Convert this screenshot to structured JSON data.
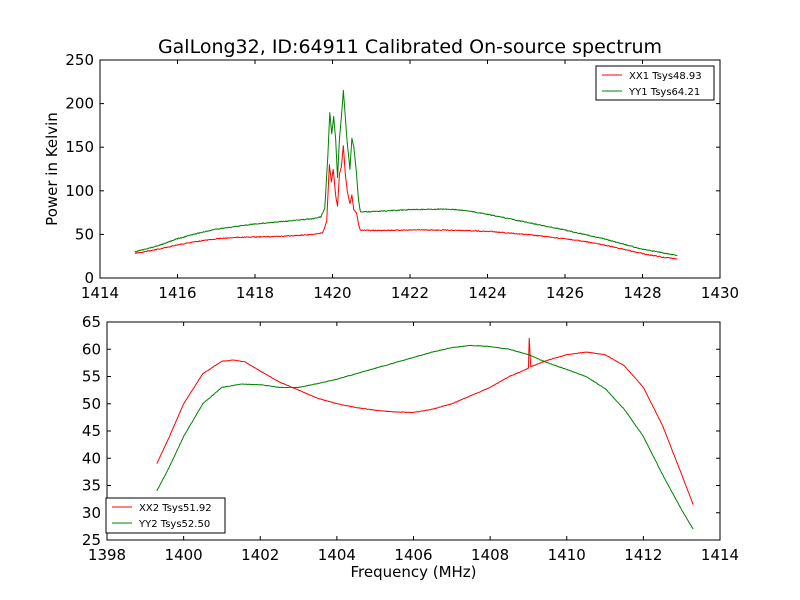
{
  "title": "GalLong32, ID:64911 Calibrated On-source spectrum",
  "chart_data": [
    {
      "type": "line",
      "title": "GalLong32, ID:64911 Calibrated On-source spectrum",
      "xlabel": "",
      "ylabel": "Power in Kelvin",
      "xlim": [
        1414,
        1430
      ],
      "ylim": [
        0,
        250
      ],
      "xticks": [
        "1414",
        "1416",
        "1418",
        "1420",
        "1422",
        "1424",
        "1426",
        "1428",
        "1430"
      ],
      "yticks": [
        "0",
        "50",
        "100",
        "150",
        "200",
        "250"
      ],
      "legend_position": "top-right",
      "grid": false,
      "series": [
        {
          "name": "XX1 Tsys48.93",
          "color": "#ff0000",
          "points": [
            [
              1414.9,
              28
            ],
            [
              1415.5,
              33
            ],
            [
              1416,
              38
            ],
            [
              1416.5,
              42
            ],
            [
              1417,
              45
            ],
            [
              1417.5,
              46.5
            ],
            [
              1418,
              47
            ],
            [
              1418.5,
              47.5
            ],
            [
              1419,
              48.5
            ],
            [
              1419.5,
              50
            ],
            [
              1419.75,
              52
            ],
            [
              1419.85,
              65
            ],
            [
              1419.92,
              130
            ],
            [
              1419.97,
              110
            ],
            [
              1420.02,
              125
            ],
            [
              1420.08,
              95
            ],
            [
              1420.13,
              82
            ],
            [
              1420.18,
              120
            ],
            [
              1420.23,
              128
            ],
            [
              1420.28,
              152
            ],
            [
              1420.33,
              120
            ],
            [
              1420.38,
              100
            ],
            [
              1420.45,
              85
            ],
            [
              1420.5,
              95
            ],
            [
              1420.55,
              78
            ],
            [
              1420.62,
              75
            ],
            [
              1420.68,
              60
            ],
            [
              1420.72,
              55
            ],
            [
              1421,
              54.5
            ],
            [
              1422,
              55
            ],
            [
              1423,
              55
            ],
            [
              1424,
              53.5
            ],
            [
              1425,
              50
            ],
            [
              1426,
              45
            ],
            [
              1426.5,
              42
            ],
            [
              1427,
              38
            ],
            [
              1427.5,
              33
            ],
            [
              1428,
              28
            ],
            [
              1428.5,
              24
            ],
            [
              1428.9,
              22
            ]
          ]
        },
        {
          "name": "YY1 Tsys64.21",
          "color": "#008000",
          "points": [
            [
              1414.9,
              30
            ],
            [
              1415.5,
              37
            ],
            [
              1416,
              45
            ],
            [
              1416.5,
              51
            ],
            [
              1417,
              56
            ],
            [
              1417.5,
              59
            ],
            [
              1418,
              62
            ],
            [
              1418.5,
              64
            ],
            [
              1419,
              66
            ],
            [
              1419.5,
              68
            ],
            [
              1419.7,
              70
            ],
            [
              1419.8,
              80
            ],
            [
              1419.88,
              140
            ],
            [
              1419.93,
              190
            ],
            [
              1419.98,
              165
            ],
            [
              1420.03,
              185
            ],
            [
              1420.08,
              160
            ],
            [
              1420.13,
              115
            ],
            [
              1420.18,
              160
            ],
            [
              1420.23,
              185
            ],
            [
              1420.28,
              215
            ],
            [
              1420.33,
              185
            ],
            [
              1420.38,
              155
            ],
            [
              1420.45,
              125
            ],
            [
              1420.5,
              160
            ],
            [
              1420.55,
              150
            ],
            [
              1420.62,
              120
            ],
            [
              1420.67,
              90
            ],
            [
              1420.72,
              76
            ],
            [
              1421,
              76
            ],
            [
              1422,
              78.5
            ],
            [
              1423,
              79
            ],
            [
              1423.5,
              77
            ],
            [
              1424,
              73
            ],
            [
              1425,
              64
            ],
            [
              1426,
              55
            ],
            [
              1426.5,
              50
            ],
            [
              1427,
              45
            ],
            [
              1427.5,
              39
            ],
            [
              1428,
              33
            ],
            [
              1428.5,
              29
            ],
            [
              1428.9,
              26
            ]
          ]
        }
      ]
    },
    {
      "type": "line",
      "title": "",
      "xlabel": "Frequency (MHz)",
      "ylabel": "",
      "xlim": [
        1398,
        1414
      ],
      "ylim": [
        25,
        65
      ],
      "xticks": [
        "1398",
        "1400",
        "1402",
        "1404",
        "1406",
        "1408",
        "1410",
        "1412",
        "1414"
      ],
      "yticks": [
        "25",
        "30",
        "35",
        "40",
        "45",
        "50",
        "55",
        "60",
        "65"
      ],
      "legend_position": "bottom-left",
      "grid": false,
      "series": [
        {
          "name": "XX2 Tsys51.92",
          "color": "#ff0000",
          "points": [
            [
              1399.3,
              39
            ],
            [
              1399.6,
              43.5
            ],
            [
              1400,
              50
            ],
            [
              1400.5,
              55.5
            ],
            [
              1401,
              57.8
            ],
            [
              1401.3,
              58
            ],
            [
              1401.6,
              57.7
            ],
            [
              1402,
              56
            ],
            [
              1402.5,
              54
            ],
            [
              1403,
              52.5
            ],
            [
              1403.5,
              51
            ],
            [
              1404,
              50
            ],
            [
              1404.5,
              49.3
            ],
            [
              1405,
              48.8
            ],
            [
              1405.5,
              48.5
            ],
            [
              1406,
              48.4
            ],
            [
              1406.5,
              49
            ],
            [
              1407,
              50
            ],
            [
              1407.5,
              51.5
            ],
            [
              1408,
              53
            ],
            [
              1408.5,
              55
            ],
            [
              1409,
              56.5
            ],
            [
              1409.02,
              62
            ],
            [
              1409.06,
              56.8
            ],
            [
              1409.5,
              58
            ],
            [
              1410,
              59
            ],
            [
              1410.5,
              59.5
            ],
            [
              1411,
              59
            ],
            [
              1411.5,
              57
            ],
            [
              1412,
              53
            ],
            [
              1412.5,
              46
            ],
            [
              1413,
              37
            ],
            [
              1413.3,
              31.5
            ]
          ]
        },
        {
          "name": "YY2 Tsys52.50",
          "color": "#008000",
          "points": [
            [
              1399.3,
              34
            ],
            [
              1399.6,
              38
            ],
            [
              1400,
              44
            ],
            [
              1400.5,
              50
            ],
            [
              1401,
              53
            ],
            [
              1401.5,
              53.6
            ],
            [
              1402,
              53.5
            ],
            [
              1402.5,
              53
            ],
            [
              1403,
              53
            ],
            [
              1403.5,
              53.7
            ],
            [
              1404,
              54.5
            ],
            [
              1404.5,
              55.5
            ],
            [
              1405,
              56.5
            ],
            [
              1405.5,
              57.5
            ],
            [
              1406,
              58.5
            ],
            [
              1406.5,
              59.5
            ],
            [
              1407,
              60.3
            ],
            [
              1407.5,
              60.7
            ],
            [
              1408,
              60.5
            ],
            [
              1408.5,
              60
            ],
            [
              1409,
              59
            ],
            [
              1409.5,
              57.5
            ],
            [
              1410,
              56.3
            ],
            [
              1410.5,
              55
            ],
            [
              1411,
              52.8
            ],
            [
              1411.5,
              49
            ],
            [
              1412,
              44
            ],
            [
              1412.5,
              37
            ],
            [
              1413,
              30.5
            ],
            [
              1413.3,
              27
            ]
          ]
        }
      ]
    }
  ]
}
